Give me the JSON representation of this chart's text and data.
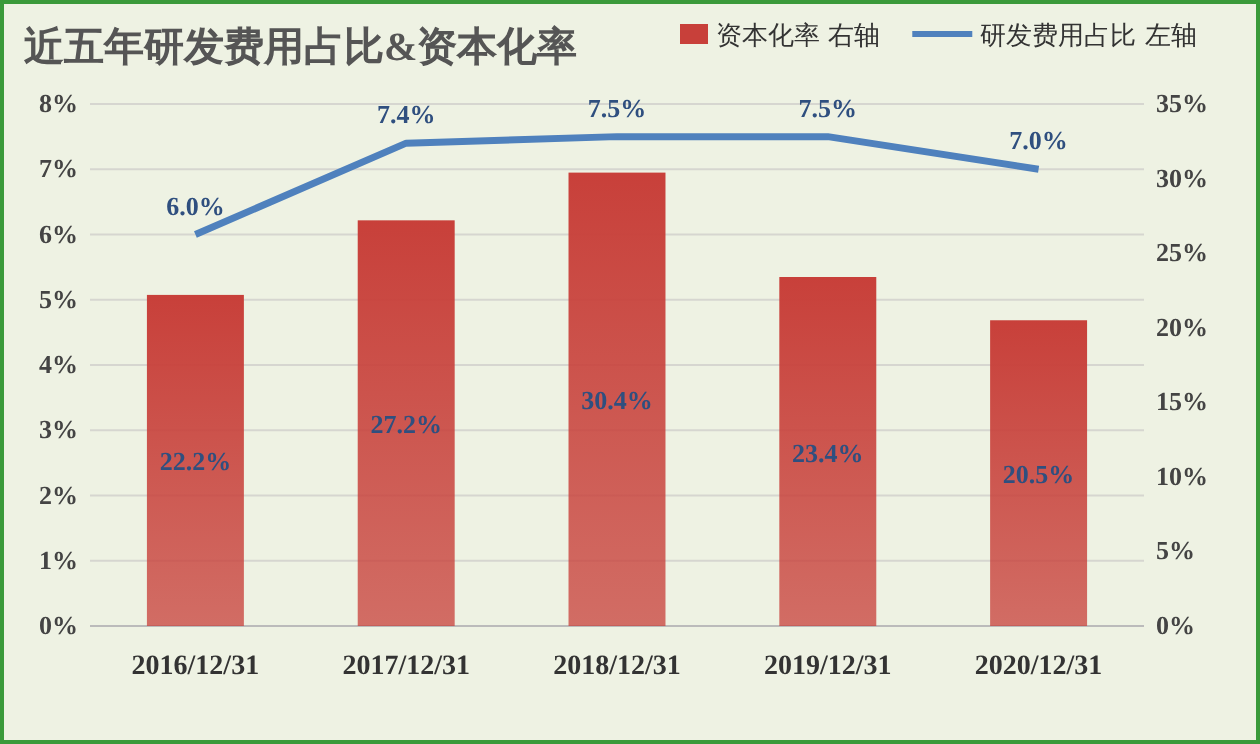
{
  "chart_data": {
    "type": "bar",
    "title": "近五年研发费用占比&资本化率",
    "categories": [
      "2016/12/31",
      "2017/12/31",
      "2018/12/31",
      "2019/12/31",
      "2020/12/31"
    ],
    "series": [
      {
        "name": "资本化率 右轴",
        "axis": "y2",
        "color": "#c8403a",
        "values": [
          22.2,
          27.2,
          30.4,
          23.4,
          20.5
        ],
        "value_labels": [
          "22.2%",
          "27.2%",
          "30.4%",
          "23.4%",
          "20.5%"
        ]
      },
      {
        "name": "研发费用占比 左轴",
        "type": "line",
        "axis": "y",
        "color": "#4f81bd",
        "values": [
          6.0,
          7.4,
          7.5,
          7.5,
          7.0
        ],
        "value_labels": [
          "6.0%",
          "7.4%",
          "7.5%",
          "7.5%",
          "7.0%"
        ]
      }
    ],
    "ylim": [
      0,
      8
    ],
    "yticks": [
      {
        "value": 0,
        "label": "0%"
      },
      {
        "value": 1,
        "label": "1%"
      },
      {
        "value": 2,
        "label": "2%"
      },
      {
        "value": 3,
        "label": "3%"
      },
      {
        "value": 4,
        "label": "4%"
      },
      {
        "value": 5,
        "label": "5%"
      },
      {
        "value": 6,
        "label": "6%"
      },
      {
        "value": 7,
        "label": "7%"
      },
      {
        "value": 8,
        "label": "8%"
      }
    ],
    "y2lim": [
      0,
      35
    ],
    "y2ticks": [
      {
        "value": 0,
        "label": "0%"
      },
      {
        "value": 5,
        "label": "5%"
      },
      {
        "value": 10,
        "label": "10%"
      },
      {
        "value": 15,
        "label": "15%"
      },
      {
        "value": 20,
        "label": "20%"
      },
      {
        "value": 25,
        "label": "25%"
      },
      {
        "value": 30,
        "label": "30%"
      },
      {
        "value": 35,
        "label": "35%"
      }
    ],
    "grid": "y",
    "legend": "top right",
    "marker": "none",
    "line_style": "solid"
  }
}
